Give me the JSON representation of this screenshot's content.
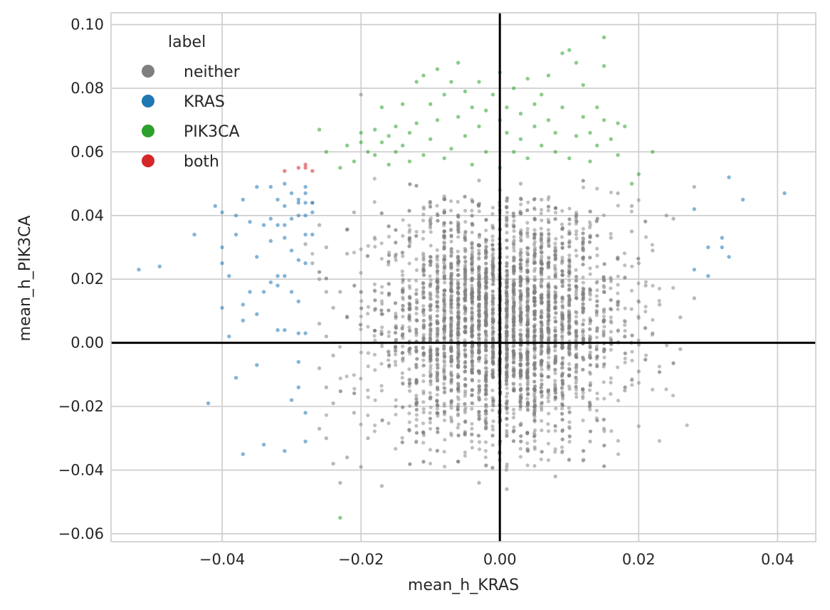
{
  "chart_data": {
    "type": "scatter",
    "title": "",
    "xlabel": "mean_h_KRAS",
    "ylabel": "mean_h_PIK3CA",
    "xlim": [
      -0.056,
      0.0455
    ],
    "ylim": [
      -0.0625,
      0.1037
    ],
    "xticks": [
      -0.04,
      -0.02,
      0.0,
      0.02,
      0.04
    ],
    "xtick_labels": [
      "−0.04",
      "−0.02",
      "0.00",
      "0.02",
      "0.04"
    ],
    "yticks": [
      -0.06,
      -0.04,
      -0.02,
      0.0,
      0.02,
      0.04,
      0.06,
      0.08,
      0.1
    ],
    "ytick_labels": [
      "−0.06",
      "−0.04",
      "−0.02",
      "0.00",
      "0.02",
      "0.04",
      "0.06",
      "0.08",
      "0.10"
    ],
    "grid": true,
    "reference_lines": {
      "x": 0,
      "y": 0
    },
    "legend": {
      "title": "label",
      "placement": "top-left",
      "entries": [
        {
          "label": "neither",
          "color": "#7f7f7f"
        },
        {
          "label": "KRAS",
          "color": "#1f77b4"
        },
        {
          "label": "PIK3CA",
          "color": "#2ca02c"
        },
        {
          "label": "both",
          "color": "#d62728"
        }
      ]
    },
    "series": [
      {
        "label": "neither",
        "color": "#7f7f7f",
        "note": "dense central cloud, approx. 3000+ points; core spans x -0.018..0.018, y -0.035..0.055",
        "points": [
          [
            -0.02,
            0.078
          ],
          [
            -0.027,
            0.044
          ],
          [
            -0.026,
            0.037
          ],
          [
            -0.025,
            0.03
          ],
          [
            -0.028,
            0.031
          ],
          [
            -0.027,
            0.025
          ],
          [
            -0.026,
            0.02
          ],
          [
            -0.025,
            0.016
          ],
          [
            -0.024,
            0.011
          ],
          [
            -0.026,
            0.006
          ],
          [
            -0.025,
            0.002
          ],
          [
            -0.024,
            -0.004
          ],
          [
            -0.026,
            -0.008
          ],
          [
            -0.025,
            -0.014
          ],
          [
            -0.024,
            -0.019
          ],
          [
            -0.026,
            -0.027
          ],
          [
            -0.025,
            -0.03
          ],
          [
            -0.024,
            -0.038
          ],
          [
            -0.023,
            -0.044
          ],
          [
            -0.022,
            -0.036
          ],
          [
            -0.02,
            -0.039
          ],
          [
            -0.017,
            -0.045
          ],
          [
            -0.003,
            -0.044
          ],
          [
            0.001,
            -0.046
          ],
          [
            0.008,
            -0.042
          ],
          [
            0.012,
            -0.037
          ],
          [
            0.02,
            -0.009
          ],
          [
            0.022,
            0.003
          ],
          [
            0.023,
            0.012
          ],
          [
            0.024,
            0.04
          ],
          [
            0.025,
            0.039
          ],
          [
            0.026,
            0.008
          ],
          [
            0.026,
            -0.002
          ],
          [
            0.028,
            0.049
          ],
          [
            0.028,
            0.014
          ],
          [
            0.019,
            0.035
          ],
          [
            0.02,
            0.025
          ],
          [
            0.021,
            0.018
          ],
          [
            0.022,
            0.029
          ],
          [
            0.019,
            0.043
          ],
          [
            0.017,
            0.047
          ],
          [
            0.016,
            0.033
          ],
          [
            0.018,
            -0.015
          ],
          [
            0.015,
            -0.027
          ],
          [
            0.013,
            -0.031
          ],
          [
            -0.021,
            0.041
          ],
          [
            -0.022,
            0.028
          ],
          [
            -0.023,
            0.016
          ],
          [
            -0.021,
            -0.022
          ],
          [
            -0.019,
            -0.03
          ],
          [
            0.0,
            0.048
          ],
          [
            -0.003,
            0.051
          ],
          [
            0.003,
            0.05
          ],
          [
            0.006,
            0.045
          ],
          [
            -0.008,
            0.046
          ]
        ]
      },
      {
        "label": "KRAS",
        "color": "#1f77b4",
        "points": [
          [
            -0.052,
            0.023
          ],
          [
            -0.049,
            0.024
          ],
          [
            -0.044,
            0.034
          ],
          [
            -0.042,
            -0.019
          ],
          [
            -0.041,
            0.043
          ],
          [
            -0.04,
            0.041
          ],
          [
            -0.04,
            0.03
          ],
          [
            -0.04,
            0.025
          ],
          [
            -0.04,
            0.011
          ],
          [
            -0.039,
            0.021
          ],
          [
            -0.039,
            0.002
          ],
          [
            -0.038,
            0.04
          ],
          [
            -0.038,
            0.034
          ],
          [
            -0.038,
            -0.011
          ],
          [
            -0.037,
            0.045
          ],
          [
            -0.037,
            0.012
          ],
          [
            -0.037,
            0.007
          ],
          [
            -0.037,
            -0.035
          ],
          [
            -0.036,
            0.016
          ],
          [
            -0.036,
            0.038
          ],
          [
            -0.035,
            0.049
          ],
          [
            -0.035,
            0.027
          ],
          [
            -0.035,
            0.009
          ],
          [
            -0.035,
            -0.007
          ],
          [
            -0.034,
            0.037
          ],
          [
            -0.034,
            0.016
          ],
          [
            -0.034,
            -0.032
          ],
          [
            -0.033,
            0.049
          ],
          [
            -0.033,
            0.039
          ],
          [
            -0.033,
            0.032
          ],
          [
            -0.033,
            0.019
          ],
          [
            -0.032,
            0.045
          ],
          [
            -0.032,
            0.037
          ],
          [
            -0.032,
            0.021
          ],
          [
            -0.032,
            0.018
          ],
          [
            -0.032,
            0.004
          ],
          [
            -0.031,
            0.05
          ],
          [
            -0.031,
            0.043
          ],
          [
            -0.031,
            0.037
          ],
          [
            -0.031,
            0.033
          ],
          [
            -0.031,
            0.021
          ],
          [
            -0.031,
            0.004
          ],
          [
            -0.031,
            -0.034
          ],
          [
            -0.03,
            0.047
          ],
          [
            -0.03,
            0.039
          ],
          [
            -0.03,
            0.029
          ],
          [
            -0.03,
            0.016
          ],
          [
            -0.03,
            -0.018
          ],
          [
            -0.029,
            0.045
          ],
          [
            -0.029,
            0.044
          ],
          [
            -0.029,
            0.04
          ],
          [
            -0.029,
            0.026
          ],
          [
            -0.029,
            0.013
          ],
          [
            -0.029,
            0.003
          ],
          [
            -0.029,
            -0.006
          ],
          [
            -0.029,
            -0.014
          ],
          [
            -0.028,
            0.049
          ],
          [
            -0.028,
            0.047
          ],
          [
            -0.028,
            0.044
          ],
          [
            -0.028,
            0.04
          ],
          [
            -0.028,
            0.034
          ],
          [
            -0.028,
            0.025
          ],
          [
            -0.028,
            0.003
          ],
          [
            -0.028,
            -0.022
          ],
          [
            -0.028,
            -0.031
          ],
          [
            -0.027,
            0.044
          ],
          [
            -0.027,
            0.041
          ],
          [
            -0.027,
            0.034
          ],
          [
            0.028,
            0.042
          ],
          [
            0.028,
            0.023
          ],
          [
            0.03,
            0.03
          ],
          [
            0.03,
            0.021
          ],
          [
            0.032,
            0.033
          ],
          [
            0.032,
            0.03
          ],
          [
            0.033,
            0.052
          ],
          [
            0.033,
            0.027
          ],
          [
            0.035,
            0.045
          ],
          [
            0.041,
            0.047
          ]
        ]
      },
      {
        "label": "PIK3CA",
        "color": "#2ca02c",
        "points": [
          [
            -0.026,
            0.067
          ],
          [
            -0.025,
            0.06
          ],
          [
            -0.023,
            0.055
          ],
          [
            -0.023,
            -0.055
          ],
          [
            -0.022,
            0.062
          ],
          [
            -0.021,
            0.057
          ],
          [
            -0.02,
            0.066
          ],
          [
            -0.02,
            0.063
          ],
          [
            -0.019,
            0.06
          ],
          [
            -0.018,
            0.067
          ],
          [
            -0.018,
            0.059
          ],
          [
            -0.017,
            0.074
          ],
          [
            -0.017,
            0.063
          ],
          [
            -0.016,
            0.065
          ],
          [
            -0.016,
            0.056
          ],
          [
            -0.015,
            0.068
          ],
          [
            -0.015,
            0.06
          ],
          [
            -0.014,
            0.075
          ],
          [
            -0.014,
            0.062
          ],
          [
            -0.013,
            0.066
          ],
          [
            -0.013,
            0.057
          ],
          [
            -0.012,
            0.069
          ],
          [
            -0.012,
            0.082
          ],
          [
            -0.011,
            0.084
          ],
          [
            -0.011,
            0.059
          ],
          [
            -0.01,
            0.075
          ],
          [
            -0.01,
            0.064
          ],
          [
            -0.009,
            0.07
          ],
          [
            -0.009,
            0.086
          ],
          [
            -0.008,
            0.058
          ],
          [
            -0.008,
            0.078
          ],
          [
            -0.007,
            0.082
          ],
          [
            -0.007,
            0.061
          ],
          [
            -0.006,
            0.088
          ],
          [
            -0.006,
            0.071
          ],
          [
            -0.005,
            0.065
          ],
          [
            -0.005,
            0.079
          ],
          [
            -0.004,
            0.074
          ],
          [
            -0.004,
            0.056
          ],
          [
            -0.003,
            0.068
          ],
          [
            -0.003,
            0.082
          ],
          [
            -0.002,
            0.073
          ],
          [
            -0.002,
            0.06
          ],
          [
            -0.001,
            0.078
          ],
          [
            0.0,
            0.07
          ],
          [
            0.0,
            0.085
          ],
          [
            0.0,
            0.055
          ],
          [
            0.001,
            0.066
          ],
          [
            0.001,
            0.074
          ],
          [
            0.002,
            0.08
          ],
          [
            0.002,
            0.06
          ],
          [
            0.003,
            0.072
          ],
          [
            0.003,
            0.064
          ],
          [
            0.004,
            0.083
          ],
          [
            0.004,
            0.058
          ],
          [
            0.005,
            0.068
          ],
          [
            0.005,
            0.075
          ],
          [
            0.006,
            0.062
          ],
          [
            0.006,
            0.078
          ],
          [
            0.007,
            0.07
          ],
          [
            0.007,
            0.084
          ],
          [
            0.008,
            0.06
          ],
          [
            0.008,
            0.066
          ],
          [
            0.009,
            0.074
          ],
          [
            0.009,
            0.091
          ],
          [
            0.01,
            0.058
          ],
          [
            0.01,
            0.092
          ],
          [
            0.011,
            0.088
          ],
          [
            0.011,
            0.065
          ],
          [
            0.012,
            0.071
          ],
          [
            0.012,
            0.081
          ],
          [
            0.013,
            0.066
          ],
          [
            0.013,
            0.057
          ],
          [
            0.014,
            0.074
          ],
          [
            0.014,
            0.062
          ],
          [
            0.015,
            0.096
          ],
          [
            0.015,
            0.087
          ],
          [
            0.015,
            0.07
          ],
          [
            0.016,
            0.064
          ],
          [
            0.017,
            0.069
          ],
          [
            0.017,
            0.059
          ],
          [
            0.018,
            0.068
          ],
          [
            0.019,
            0.05
          ],
          [
            0.02,
            0.053
          ],
          [
            0.022,
            0.06
          ]
        ]
      },
      {
        "label": "both",
        "color": "#d62728",
        "points": [
          [
            -0.031,
            0.054
          ],
          [
            -0.029,
            0.055
          ],
          [
            -0.028,
            0.056
          ],
          [
            -0.028,
            0.055
          ],
          [
            -0.027,
            0.054
          ]
        ]
      }
    ]
  }
}
